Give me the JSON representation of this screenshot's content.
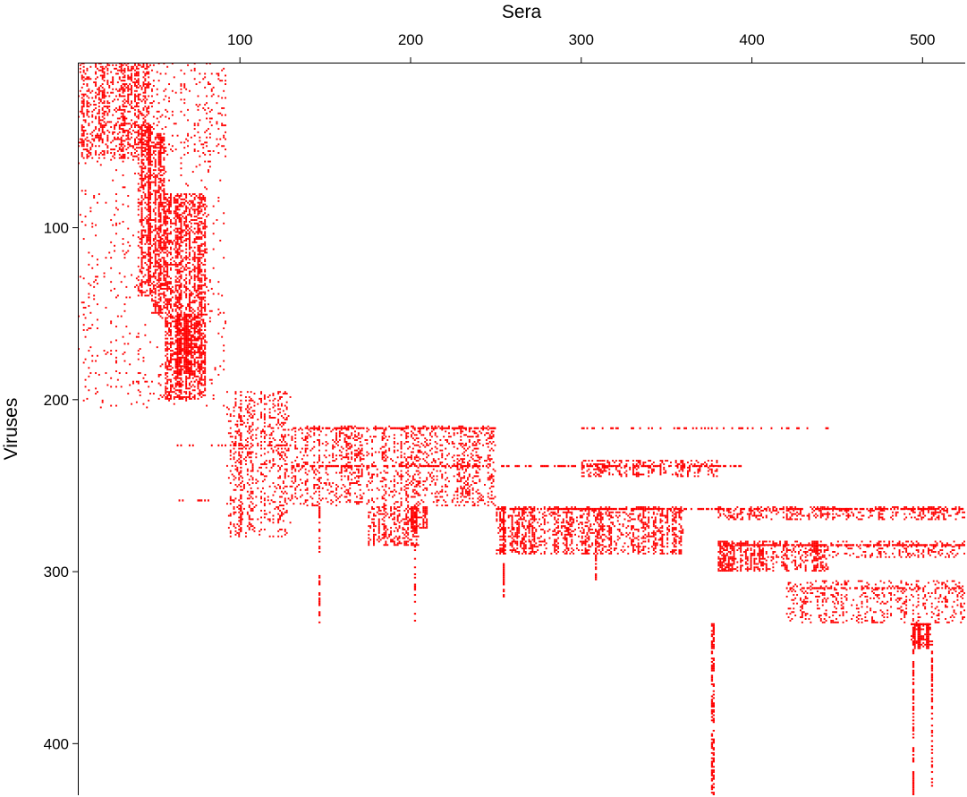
{
  "chart_data": {
    "type": "heatmap",
    "title": "",
    "xlabel": "Sera",
    "ylabel": "Viruses",
    "x_axis_position": "top",
    "y_axis_inverted": true,
    "xlim": [
      5,
      525
    ],
    "ylim": [
      4,
      430
    ],
    "xticks": [
      100,
      200,
      300,
      400,
      500
    ],
    "yticks": [
      100,
      200,
      300,
      400
    ],
    "grid": false,
    "legend": "none",
    "cell_color": "#ff0000",
    "background_color": "#ffffff",
    "axis_color": "#000000",
    "blocks": [
      {
        "x": [
          5,
          50
        ],
        "y": [
          4,
          60
        ],
        "density": 0.45
      },
      {
        "x": [
          50,
          92
        ],
        "y": [
          4,
          60
        ],
        "density": 0.12
      },
      {
        "x": [
          5,
          92
        ],
        "y": [
          60,
          205
        ],
        "density": 0.05
      },
      {
        "x": [
          40,
          48
        ],
        "y": [
          40,
          140
        ],
        "density": 0.75
      },
      {
        "x": [
          48,
          56
        ],
        "y": [
          45,
          150
        ],
        "density": 0.65
      },
      {
        "x": [
          56,
          80
        ],
        "y": [
          80,
          200
        ],
        "density": 0.55
      },
      {
        "x": [
          62,
          80
        ],
        "y": [
          150,
          185
        ],
        "density": 0.8
      },
      {
        "x": [
          92,
          130
        ],
        "y": [
          195,
          280
        ],
        "density": 0.25
      },
      {
        "x": [
          130,
          250
        ],
        "y": [
          215,
          262
        ],
        "density": 0.28
      },
      {
        "x": [
          175,
          205
        ],
        "y": [
          262,
          285
        ],
        "density": 0.45
      },
      {
        "x": [
          200,
          210
        ],
        "y": [
          262,
          275
        ],
        "density": 0.75
      },
      {
        "x": [
          250,
          360
        ],
        "y": [
          262,
          290
        ],
        "density": 0.5
      },
      {
        "x": [
          300,
          380
        ],
        "y": [
          235,
          245
        ],
        "density": 0.4
      },
      {
        "x": [
          380,
          525
        ],
        "y": [
          262,
          270
        ],
        "density": 0.35
      },
      {
        "x": [
          380,
          445
        ],
        "y": [
          282,
          300
        ],
        "density": 0.55
      },
      {
        "x": [
          445,
          525
        ],
        "y": [
          282,
          292
        ],
        "density": 0.3
      },
      {
        "x": [
          420,
          525
        ],
        "y": [
          305,
          330
        ],
        "density": 0.22
      },
      {
        "x": [
          493,
          505
        ],
        "y": [
          330,
          345
        ],
        "density": 0.9
      }
    ],
    "horizontal_lines": [
      {
        "y": 216,
        "x": [
          130,
          250
        ],
        "density": 0.6
      },
      {
        "y": 216,
        "x": [
          300,
          445
        ],
        "density": 0.35
      },
      {
        "y": 226,
        "x": [
          60,
          130
        ],
        "density": 0.3
      },
      {
        "y": 238,
        "x": [
          130,
          395
        ],
        "density": 0.55
      },
      {
        "y": 258,
        "x": [
          60,
          85
        ],
        "density": 0.35
      },
      {
        "y": 263,
        "x": [
          250,
          525
        ],
        "density": 0.7
      },
      {
        "y": 284,
        "x": [
          380,
          525
        ],
        "density": 0.75
      },
      {
        "y": 309,
        "x": [
          420,
          525
        ],
        "density": 0.5
      },
      {
        "y": 330,
        "x": [
          493,
          505
        ],
        "density": 0.9
      }
    ],
    "vertical_lines": [
      {
        "x": 376,
        "y": [
          330,
          430
        ],
        "density": 0.6
      },
      {
        "x": 377,
        "y": [
          330,
          430
        ],
        "density": 0.55
      },
      {
        "x": 494,
        "y": [
          330,
          430
        ],
        "density": 0.6
      },
      {
        "x": 505,
        "y": [
          340,
          425
        ],
        "density": 0.5
      },
      {
        "x": 254,
        "y": [
          262,
          315
        ],
        "density": 0.7
      },
      {
        "x": 308,
        "y": [
          285,
          305
        ],
        "density": 0.7
      },
      {
        "x": 146,
        "y": [
          262,
          330
        ],
        "density": 0.45
      },
      {
        "x": 202,
        "y": [
          262,
          330
        ],
        "density": 0.4
      },
      {
        "x": 100,
        "y": [
          195,
          280
        ],
        "density": 0.5
      }
    ]
  }
}
